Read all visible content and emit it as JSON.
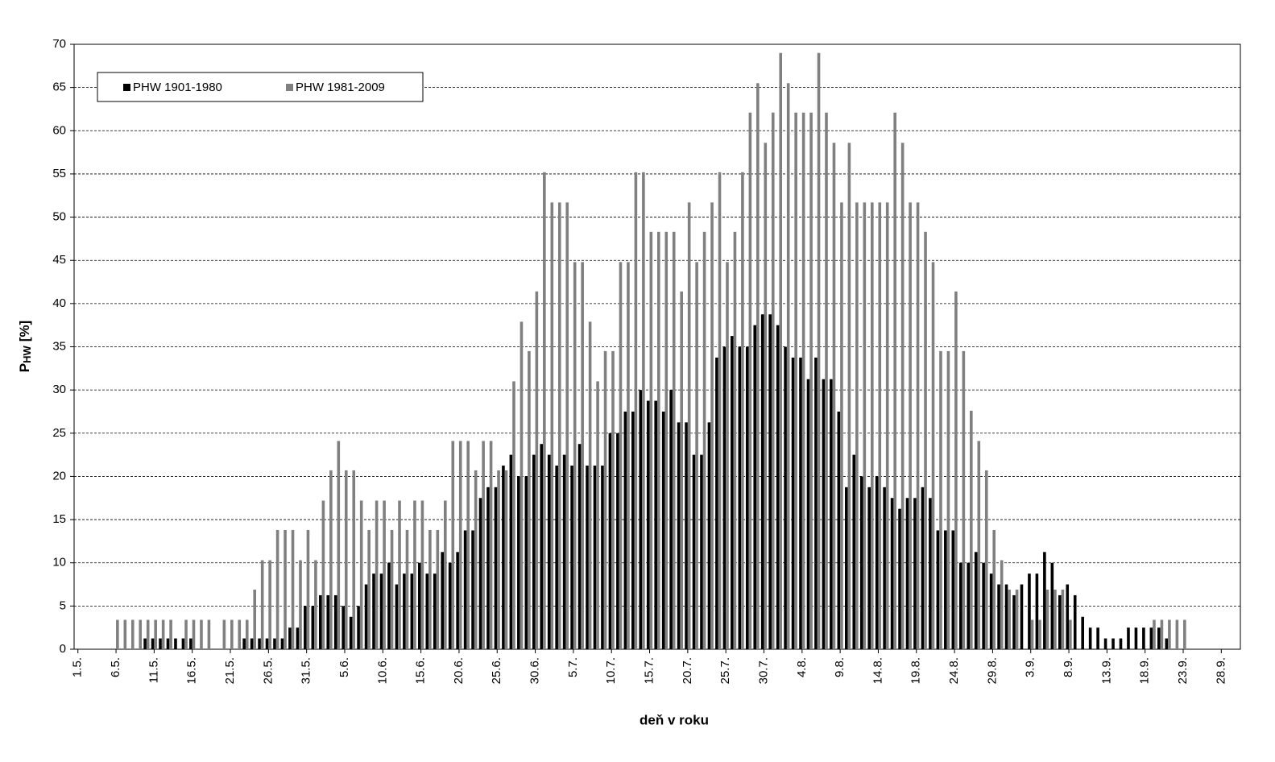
{
  "chart_data": {
    "type": "bar",
    "x_label": "deň v roku",
    "y_label": "P",
    "y_label_sub": "HW",
    "y_label_unit": "[%]",
    "categories": [
      "1.5.",
      null,
      null,
      null,
      null,
      "6.5.",
      null,
      null,
      null,
      null,
      "11.5.",
      null,
      null,
      null,
      null,
      "16.5.",
      null,
      null,
      null,
      null,
      "21.5.",
      null,
      null,
      null,
      null,
      "26.5.",
      null,
      null,
      null,
      null,
      "31.5.",
      null,
      null,
      null,
      null,
      "5.6.",
      null,
      null,
      null,
      null,
      "10.6.",
      null,
      null,
      null,
      null,
      "15.6.",
      null,
      null,
      null,
      null,
      "20.6.",
      null,
      null,
      null,
      null,
      "25.6.",
      null,
      null,
      null,
      null,
      "30.6.",
      null,
      null,
      null,
      null,
      "5.7.",
      null,
      null,
      null,
      null,
      "10.7.",
      null,
      null,
      null,
      null,
      "15.7.",
      null,
      null,
      null,
      null,
      "20.7.",
      null,
      null,
      null,
      null,
      "25.7.",
      null,
      null,
      null,
      null,
      "30.7.",
      null,
      null,
      null,
      null,
      "4.8.",
      null,
      null,
      null,
      null,
      "9.8.",
      null,
      null,
      null,
      null,
      "14.8.",
      null,
      null,
      null,
      null,
      "19.8.",
      null,
      null,
      null,
      null,
      "24.8.",
      null,
      null,
      null,
      null,
      "29.8.",
      null,
      null,
      null,
      null,
      "3.9.",
      null,
      null,
      null,
      null,
      "8.9.",
      null,
      null,
      null,
      null,
      "13.9.",
      null,
      null,
      null,
      null,
      "18.9.",
      null,
      null,
      null,
      null,
      "23.9.",
      null,
      null,
      null,
      null,
      "28.9.",
      null,
      null
    ],
    "series": [
      {
        "name": "PHW 1901-1980",
        "color": "#000000",
        "values": [
          0,
          0,
          0,
          0,
          0,
          0,
          0,
          0,
          0,
          1.25,
          1.25,
          1.25,
          1.25,
          1.25,
          1.25,
          1.25,
          0,
          0,
          0,
          0,
          0,
          0,
          1.25,
          1.25,
          1.25,
          1.25,
          1.25,
          1.25,
          2.5,
          2.5,
          5,
          5,
          6.25,
          6.25,
          6.25,
          5,
          3.75,
          5,
          7.5,
          8.75,
          8.75,
          10,
          7.5,
          8.75,
          8.75,
          10,
          8.75,
          8.75,
          11.25,
          10,
          11.25,
          13.75,
          13.75,
          17.5,
          18.75,
          18.75,
          21.25,
          22.5,
          20,
          20,
          22.5,
          23.75,
          22.5,
          21.25,
          22.5,
          21.25,
          23.75,
          21.25,
          21.25,
          21.25,
          25,
          25,
          27.5,
          27.5,
          30,
          28.75,
          28.75,
          27.5,
          30,
          26.25,
          26.25,
          22.5,
          22.5,
          26.25,
          33.75,
          35,
          36.25,
          35,
          35,
          37.5,
          38.75,
          38.75,
          37.5,
          35,
          33.75,
          33.75,
          31.25,
          33.75,
          31.25,
          31.25,
          27.5,
          18.75,
          22.5,
          20,
          18.75,
          20,
          18.75,
          17.5,
          16.25,
          17.5,
          17.5,
          18.75,
          17.5,
          13.75,
          13.75,
          13.75,
          10,
          10,
          11.25,
          10,
          8.75,
          7.5,
          7.5,
          6.25,
          7.5,
          8.75,
          8.75,
          11.25,
          10,
          6.25,
          7.5,
          6.25,
          3.75,
          2.5,
          2.5,
          1.25,
          1.25,
          1.25,
          2.5,
          2.5,
          2.5,
          2.5,
          2.5,
          1.25,
          0,
          0,
          0,
          0,
          0,
          0,
          0,
          0,
          0
        ]
      },
      {
        "name": "PHW 1981-2009",
        "color": "#808080",
        "values": [
          0,
          0,
          0,
          0,
          0,
          3.4,
          3.4,
          3.4,
          3.4,
          3.4,
          3.4,
          3.4,
          3.4,
          0,
          3.4,
          3.4,
          3.4,
          3.4,
          0,
          3.4,
          3.4,
          3.4,
          3.4,
          6.9,
          10.3,
          10.3,
          13.8,
          13.8,
          13.8,
          10.3,
          13.8,
          10.3,
          17.2,
          20.7,
          24.1,
          20.7,
          20.7,
          17.2,
          13.8,
          17.2,
          17.2,
          13.8,
          17.2,
          13.8,
          17.2,
          17.2,
          13.8,
          13.8,
          17.2,
          24.1,
          24.1,
          24.1,
          20.7,
          24.1,
          24.1,
          20.7,
          20.7,
          31,
          37.9,
          34.5,
          41.4,
          55.2,
          51.7,
          51.7,
          51.7,
          44.8,
          44.8,
          37.9,
          31,
          34.5,
          34.5,
          44.8,
          44.8,
          55.2,
          55.2,
          48.3,
          48.3,
          48.3,
          48.3,
          41.4,
          51.7,
          44.8,
          48.3,
          51.7,
          55.2,
          44.8,
          48.3,
          55.2,
          62.1,
          65.5,
          58.6,
          62.1,
          69,
          65.5,
          62.1,
          62.1,
          62.1,
          69,
          62.1,
          58.6,
          51.7,
          58.6,
          51.7,
          51.7,
          51.7,
          51.7,
          51.7,
          62.1,
          58.6,
          51.7,
          51.7,
          48.3,
          44.8,
          34.5,
          34.5,
          41.4,
          34.5,
          27.6,
          24.1,
          20.7,
          13.8,
          10.3,
          6.9,
          6.9,
          0,
          3.4,
          3.4,
          6.9,
          6.9,
          6.9,
          3.4,
          0,
          0,
          0,
          0,
          0,
          0,
          0,
          0,
          0,
          0,
          3.4,
          3.4,
          3.4,
          3.4,
          3.4,
          0,
          0,
          0,
          0,
          0,
          0,
          0
        ]
      }
    ],
    "ylim": [
      0,
      70
    ],
    "yticks": [
      0,
      5,
      10,
      15,
      20,
      25,
      30,
      35,
      40,
      45,
      50,
      55,
      60,
      65,
      70
    ],
    "grid": true,
    "legend": "upper left"
  }
}
